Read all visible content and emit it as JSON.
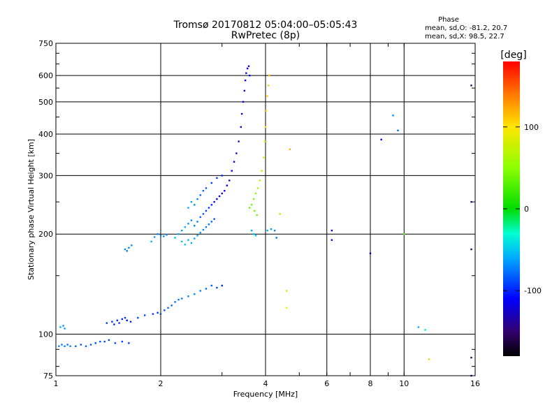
{
  "chart_data": {
    "type": "scatter",
    "title": "Tromsø 20170812 05:04:00–05:05:43",
    "subtitle": "RwPretec (8p)",
    "xlabel": "Frequency [MHz]",
    "ylabel": "Stationary phase Virtual Height [km]",
    "xscale": "log",
    "yscale": "log",
    "xlim": [
      1,
      16
    ],
    "ylim": [
      75,
      750
    ],
    "x_ticks": [
      1,
      2,
      4,
      6,
      8,
      10,
      16
    ],
    "y_ticks": [
      75,
      100,
      200,
      300,
      400,
      500,
      600,
      750
    ],
    "grid": true,
    "stats": {
      "heading": "Phase",
      "line_o": "mean, sd,O:  -81.2, 20.7",
      "line_x": "mean, sd,X:  98.5, 22.7"
    },
    "colorbar": {
      "label": "[deg]",
      "range": [
        -180,
        180
      ],
      "ticks": [
        100,
        0,
        -100
      ]
    },
    "points_phase_deg": [
      [
        1.02,
        92,
        -70
      ],
      [
        1.04,
        93,
        -75
      ],
      [
        1.06,
        92,
        -72
      ],
      [
        1.08,
        93,
        -78
      ],
      [
        1.1,
        92,
        -70
      ],
      [
        1.14,
        92,
        -82
      ],
      [
        1.18,
        93,
        -85
      ],
      [
        1.22,
        92,
        -80
      ],
      [
        1.26,
        93,
        -84
      ],
      [
        1.3,
        94,
        -88
      ],
      [
        1.34,
        95,
        -86
      ],
      [
        1.38,
        95,
        -90
      ],
      [
        1.42,
        96,
        -92
      ],
      [
        1.48,
        94,
        -88
      ],
      [
        1.55,
        95,
        -90
      ],
      [
        1.62,
        94,
        -92
      ],
      [
        1.03,
        105,
        -60
      ],
      [
        1.05,
        106,
        -65
      ],
      [
        1.06,
        104,
        -62
      ],
      [
        1.4,
        108,
        -95
      ],
      [
        1.45,
        109,
        -98
      ],
      [
        1.5,
        110,
        -100
      ],
      [
        1.55,
        111,
        -102
      ],
      [
        1.6,
        110,
        -105
      ],
      [
        1.64,
        109,
        -100
      ],
      [
        1.58,
        112,
        -98
      ],
      [
        1.52,
        108,
        -96
      ],
      [
        1.47,
        107,
        -100
      ],
      [
        1.58,
        180,
        -70
      ],
      [
        1.62,
        182,
        -72
      ],
      [
        1.65,
        185,
        -68
      ],
      [
        1.6,
        178,
        -75
      ],
      [
        1.72,
        112,
        -90
      ],
      [
        1.8,
        114,
        -88
      ],
      [
        1.9,
        115,
        -92
      ],
      [
        1.96,
        116,
        -95
      ],
      [
        2.0,
        115,
        -90
      ],
      [
        2.05,
        118,
        -86
      ],
      [
        2.1,
        120,
        -82
      ],
      [
        2.15,
        122,
        -80
      ],
      [
        2.2,
        125,
        -78
      ],
      [
        2.25,
        127,
        -76
      ],
      [
        2.3,
        128,
        -74
      ],
      [
        2.4,
        130,
        -72
      ],
      [
        2.5,
        132,
        -70
      ],
      [
        2.6,
        135,
        -75
      ],
      [
        2.7,
        137,
        -80
      ],
      [
        2.8,
        140,
        -85
      ],
      [
        2.9,
        138,
        -90
      ],
      [
        3.0,
        140,
        -100
      ],
      [
        1.88,
        190,
        -60
      ],
      [
        1.92,
        196,
        -65
      ],
      [
        1.96,
        200,
        -70
      ],
      [
        2.0,
        198,
        -72
      ],
      [
        2.04,
        197,
        -68
      ],
      [
        2.08,
        199,
        -70
      ],
      [
        2.2,
        195,
        -55
      ],
      [
        2.25,
        200,
        -58
      ],
      [
        2.3,
        205,
        -62
      ],
      [
        2.35,
        210,
        -60
      ],
      [
        2.4,
        215,
        -65
      ],
      [
        2.45,
        220,
        -70
      ],
      [
        2.5,
        212,
        -72
      ],
      [
        2.55,
        218,
        -75
      ],
      [
        2.6,
        225,
        -80
      ],
      [
        2.65,
        230,
        -85
      ],
      [
        2.7,
        235,
        -90
      ],
      [
        2.75,
        240,
        -95
      ],
      [
        2.8,
        245,
        -100
      ],
      [
        2.85,
        250,
        -105
      ],
      [
        2.9,
        255,
        -108
      ],
      [
        2.95,
        260,
        -112
      ],
      [
        3.0,
        265,
        -115
      ],
      [
        3.05,
        270,
        -118
      ],
      [
        3.1,
        280,
        -120
      ],
      [
        3.15,
        290,
        -122
      ],
      [
        2.3,
        190,
        -50
      ],
      [
        2.35,
        186,
        -52
      ],
      [
        2.4,
        192,
        -55
      ],
      [
        2.45,
        188,
        -58
      ],
      [
        2.5,
        194,
        -60
      ],
      [
        2.55,
        198,
        -62
      ],
      [
        2.6,
        202,
        -66
      ],
      [
        2.65,
        206,
        -70
      ],
      [
        2.7,
        210,
        -74
      ],
      [
        2.75,
        214,
        -78
      ],
      [
        2.8,
        218,
        -82
      ],
      [
        2.85,
        222,
        -88
      ],
      [
        2.4,
        240,
        -60
      ],
      [
        2.45,
        250,
        -65
      ],
      [
        2.5,
        245,
        -70
      ],
      [
        2.55,
        255,
        -72
      ],
      [
        2.6,
        262,
        -78
      ],
      [
        2.65,
        270,
        -80
      ],
      [
        2.7,
        275,
        -86
      ],
      [
        2.8,
        285,
        -90
      ],
      [
        2.9,
        295,
        -95
      ],
      [
        3.0,
        300,
        -100
      ],
      [
        3.2,
        310,
        -110
      ],
      [
        3.25,
        330,
        -115
      ],
      [
        3.3,
        350,
        -118
      ],
      [
        3.35,
        380,
        -120
      ],
      [
        3.4,
        420,
        -122
      ],
      [
        3.42,
        460,
        -118
      ],
      [
        3.45,
        500,
        -115
      ],
      [
        3.48,
        540,
        -112
      ],
      [
        3.5,
        580,
        -110
      ],
      [
        3.52,
        610,
        -108
      ],
      [
        3.55,
        630,
        -112
      ],
      [
        3.58,
        640,
        -115
      ],
      [
        3.6,
        600,
        -110
      ],
      [
        3.6,
        240,
        35
      ],
      [
        3.65,
        245,
        40
      ],
      [
        3.7,
        255,
        45
      ],
      [
        3.75,
        265,
        50
      ],
      [
        3.8,
        275,
        55
      ],
      [
        3.85,
        290,
        60
      ],
      [
        3.9,
        310,
        70
      ],
      [
        3.95,
        340,
        80
      ],
      [
        3.98,
        380,
        90
      ],
      [
        4.0,
        420,
        95
      ],
      [
        4.02,
        470,
        100
      ],
      [
        4.05,
        520,
        105
      ],
      [
        4.08,
        560,
        110
      ],
      [
        4.1,
        600,
        115
      ],
      [
        3.72,
        235,
        40
      ],
      [
        3.78,
        228,
        38
      ],
      [
        3.65,
        205,
        -60
      ],
      [
        3.7,
        200,
        -55
      ],
      [
        3.75,
        198,
        -50
      ],
      [
        4.05,
        205,
        -60
      ],
      [
        4.15,
        207,
        -65
      ],
      [
        4.25,
        205,
        -70
      ],
      [
        4.3,
        195,
        -80
      ],
      [
        4.4,
        230,
        60
      ],
      [
        4.6,
        135,
        80
      ],
      [
        4.6,
        120,
        100
      ],
      [
        4.7,
        360,
        120
      ],
      [
        6.2,
        205,
        -120
      ],
      [
        6.2,
        192,
        -130
      ],
      [
        8.0,
        175,
        -140
      ],
      [
        8.6,
        385,
        -110
      ],
      [
        9.3,
        455,
        -70
      ],
      [
        9.6,
        410,
        -80
      ],
      [
        10.0,
        200,
        40
      ],
      [
        11.0,
        105,
        -60
      ],
      [
        11.5,
        103,
        -40
      ],
      [
        11.8,
        84,
        110
      ],
      [
        15.6,
        560,
        -150
      ],
      [
        15.6,
        250,
        -140
      ],
      [
        15.6,
        180,
        -150
      ],
      [
        15.6,
        85,
        -150
      ],
      [
        15.6,
        75,
        -140
      ]
    ]
  }
}
